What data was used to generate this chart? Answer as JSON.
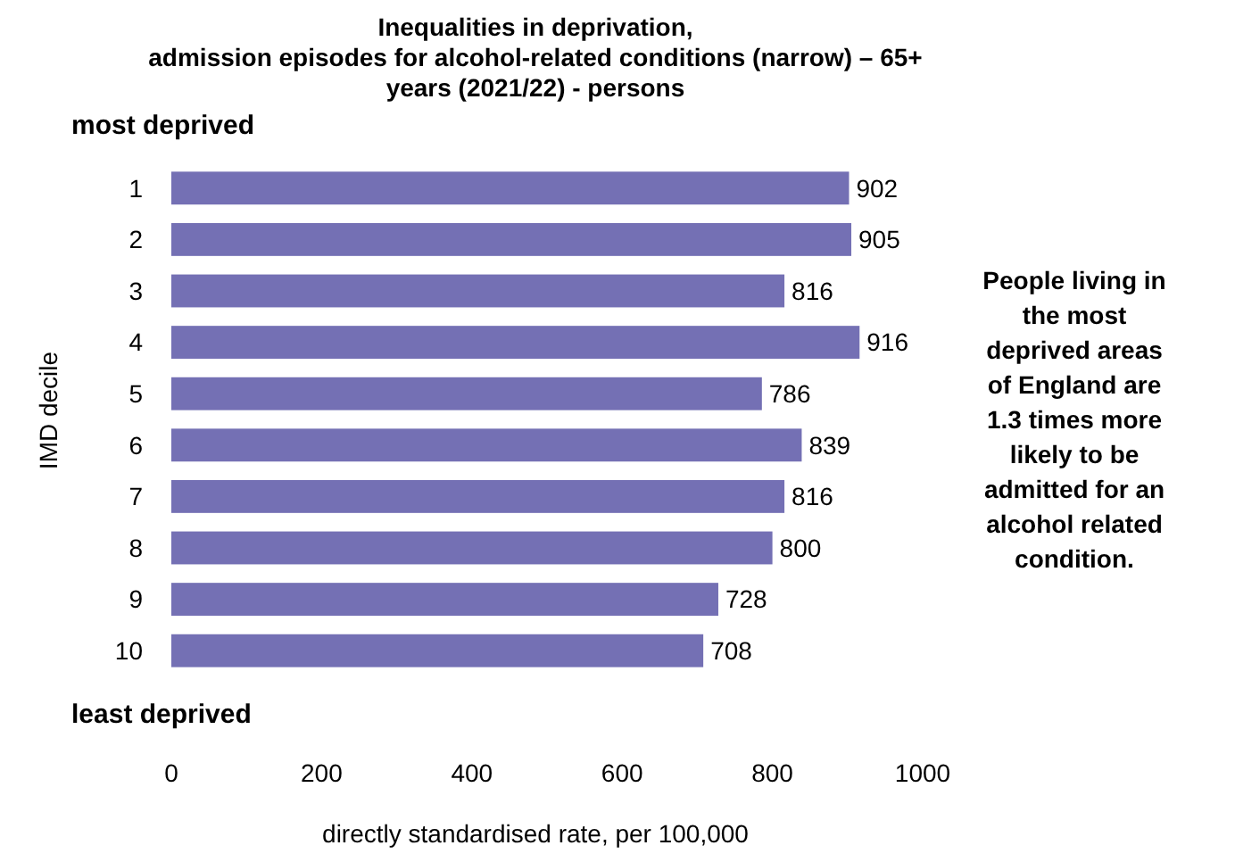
{
  "chart_data": {
    "type": "bar",
    "orientation": "horizontal",
    "title": "Inequalities in deprivation,\nadmission episodes for alcohol-related conditions (narrow) – 65+\nyears (2021/22) - persons",
    "xlabel": "directly standardised rate, per 100,000",
    "ylabel": "IMD decile",
    "categories": [
      "1",
      "2",
      "3",
      "4",
      "5",
      "6",
      "7",
      "8",
      "9",
      "10"
    ],
    "values": [
      902,
      905,
      816,
      916,
      786,
      839,
      816,
      800,
      728,
      708
    ],
    "color": "#7470b4",
    "data_labels": true,
    "xlim": [
      0,
      1000
    ],
    "xticks": [
      0,
      200,
      400,
      600,
      800,
      1000
    ],
    "grid": false,
    "annotations": [
      "most deprived",
      "least deprived",
      "People living in the most deprived areas of England are 1.3 times more likely to be admitted for an alcohol related condition."
    ]
  }
}
